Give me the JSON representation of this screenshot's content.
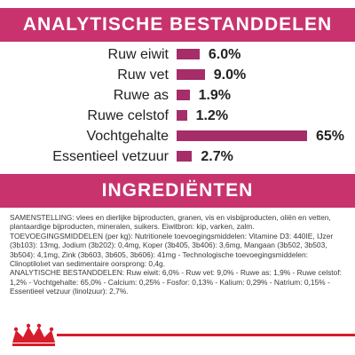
{
  "header": {
    "analytic_title": "ANALYTISCHE BESTANDDELEN"
  },
  "analytic": {
    "rows": [
      {
        "label": "Ruw eiwit",
        "value": "6.0%",
        "percent": 6.0
      },
      {
        "label": "Ruw vet",
        "value": "9.0%",
        "percent": 9.0
      },
      {
        "label": "Ruwe as",
        "value": "1.9%",
        "percent": 1.9
      },
      {
        "label": "Ruwe celstof",
        "value": "1.2%",
        "percent": 1.2
      },
      {
        "label": "Vochtgehalte",
        "value": "65%",
        "percent": 65
      },
      {
        "label": "Essentieel vetzuur",
        "value": "2.7%",
        "percent": 2.7
      }
    ]
  },
  "ingredients": {
    "title": "INGREDIËNTEN",
    "lines": [
      "SAMENSTELLING: vlees en dierlijke bijproducten, granen, vis en visbijproducten, oliën en vetten, plantaardige bijproducten, mineralen, suikers. Eiwitbron: kip, varken, zalm.",
      "TOEVOEGINGSMIDDELEN (per kg): Nutritionele toevoegingsmiddelen: Vitamine D3: 440IE, IJzer (3b103): 13mg, Jodium (3b202): 0,4mg, Koper (3b405, 3b406): 3,6mg, Mangaan (3b502, 3b503, 3b504): 4,1mg, Zink (3b603, 3b605, 3b606): 41mg - Technologische toevoegingsmiddelen: Clinoptilolıet van sedimentaire oorsprong: 0,4g.",
      "ANALYTISCHE BESTANDDELEN: Ruw eiwit: 6,0% - Ruw vet: 9,0% - Ruwe as: 1,9% - Ruwe celstof: 1,2% - Vochtgehalte: 65,0% - Calcium: 0,25% - Fosfor: 0,13% - Kalium: 0,29% - Natrium: 0,15% - Essentieel vetzuur (linolzuur): 2,7%."
    ]
  },
  "brand": {
    "logo_icon": "royal-crown-logo-icon",
    "accent_color": "#c8336e",
    "line_color": "#d51d2b"
  }
}
